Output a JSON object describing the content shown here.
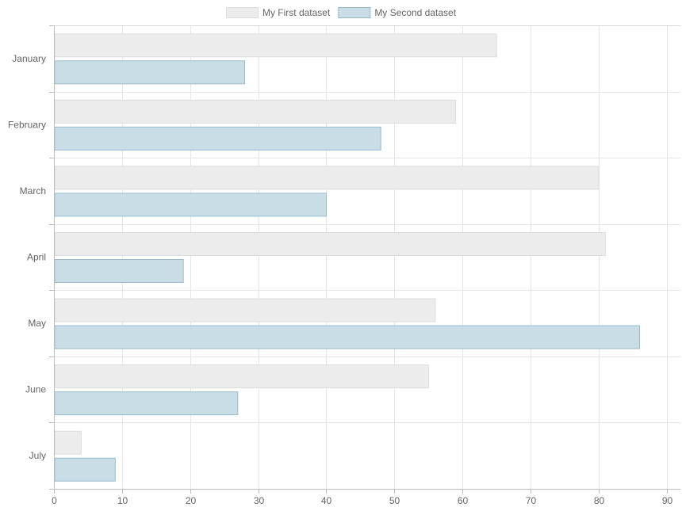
{
  "chart_data": {
    "type": "bar",
    "orientation": "horizontal",
    "categories": [
      "January",
      "February",
      "March",
      "April",
      "May",
      "June",
      "July"
    ],
    "series": [
      {
        "name": "My First dataset",
        "values": [
          65,
          59,
          80,
          81,
          56,
          55,
          4
        ],
        "fill": "#ececec",
        "stroke": "#dcdcdc"
      },
      {
        "name": "My Second dataset",
        "values": [
          28,
          48,
          40,
          19,
          86,
          27,
          9
        ],
        "fill": "#c9dde6",
        "stroke": "#97bbcd"
      }
    ],
    "x_ticks": [
      0,
      10,
      20,
      30,
      40,
      50,
      60,
      70,
      80,
      90
    ],
    "xlim": [
      0,
      92
    ],
    "grid": true,
    "legend_position": "top-center",
    "title": "",
    "xlabel": "",
    "ylabel": ""
  }
}
